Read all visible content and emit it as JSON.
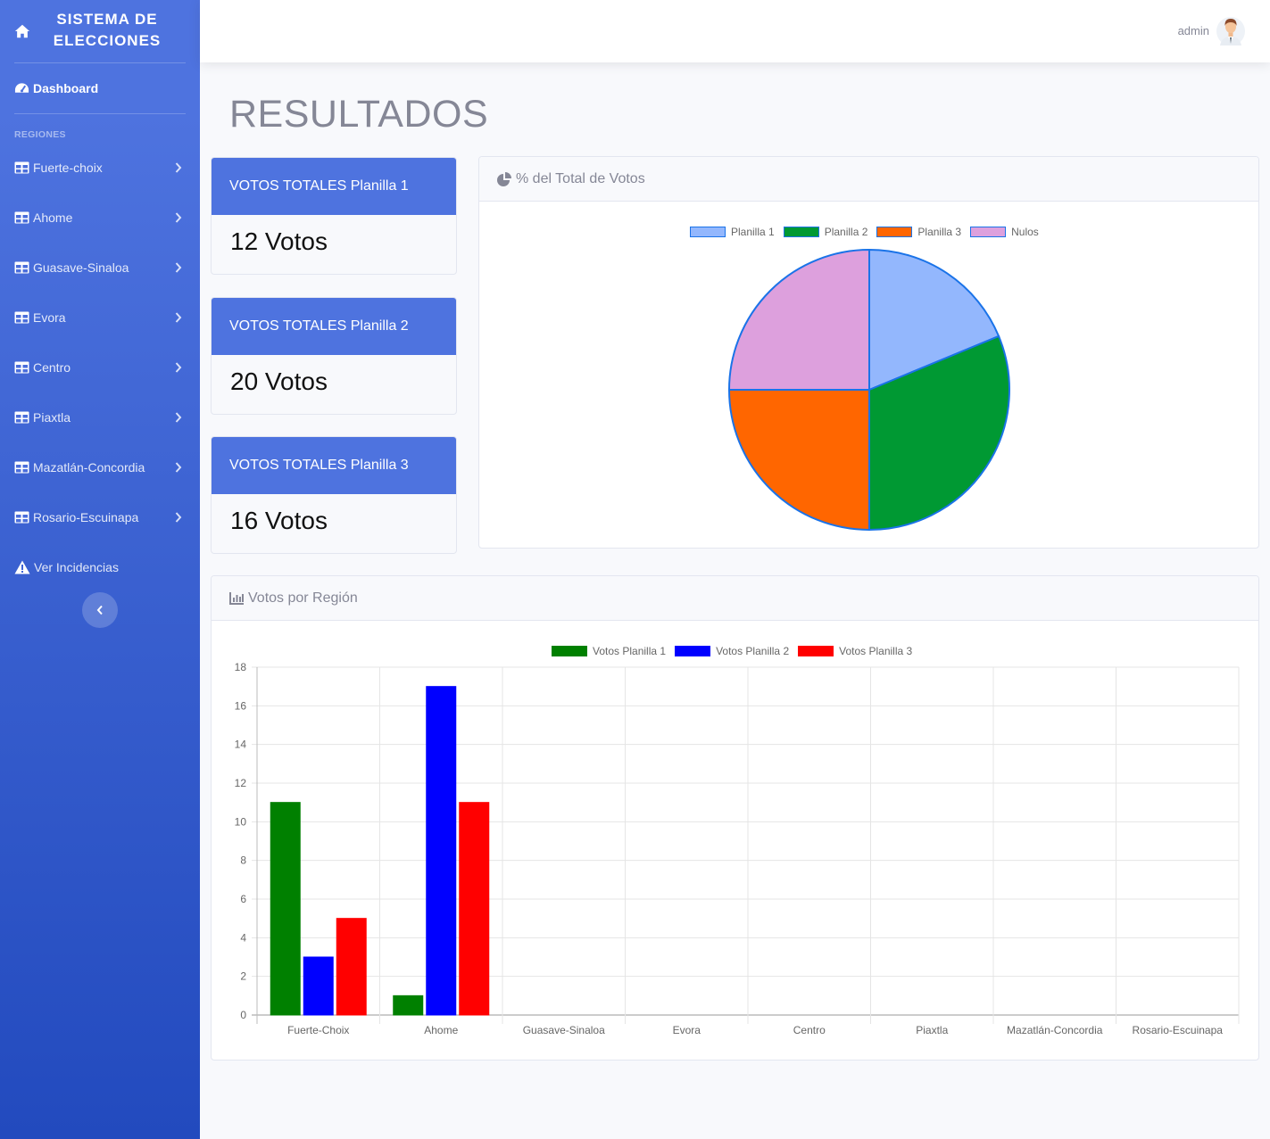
{
  "sidebar": {
    "brand": "SISTEMA DE ELECCIONES",
    "dashboard_label": "Dashboard",
    "section_heading": "REGIONES",
    "regions": [
      "Fuerte-choix",
      "Ahome",
      "Guasave-Sinaloa",
      "Evora",
      "Centro",
      "Piaxtla",
      "Mazatlán-Concordia",
      "Rosario-Escuinapa"
    ],
    "incidencias_label": "Ver Incidencias",
    "icons": {
      "brand": "home-icon",
      "dashboard": "tachometer-icon",
      "region": "table-icon",
      "incidencias": "warning-icon",
      "toggle": "chevron-left-icon"
    }
  },
  "topbar": {
    "user": "admin"
  },
  "main": {
    "title": "RESULTADOS",
    "cards": [
      {
        "label": "VOTOS TOTALES Planilla 1",
        "value": "12 Votos"
      },
      {
        "label": "VOTOS TOTALES Planilla 2",
        "value": "20 Votos"
      },
      {
        "label": "VOTOS TOTALES Planilla 3",
        "value": "16 Votos"
      }
    ],
    "pie_panel_title": "% del Total de Votos",
    "bar_panel_title": "Votos por Región"
  },
  "chart_data": [
    {
      "type": "pie",
      "labels": [
        "Planilla 1",
        "Planilla 2",
        "Planilla 3",
        "Nulos"
      ],
      "values": [
        12,
        20,
        16,
        16
      ],
      "colors": [
        "#93b7fd",
        "#009933",
        "#ff6600",
        "#dda0dd"
      ],
      "border_color": "#1a73e8",
      "legend": "top"
    },
    {
      "type": "bar",
      "categories": [
        "Fuerte-Choix",
        "Ahome",
        "Guasave-Sinaloa",
        "Evora",
        "Centro",
        "Piaxtla",
        "Mazatlán-Concordia",
        "Rosario-Escuinapa"
      ],
      "series": [
        {
          "name": "Votos Planilla 1",
          "color": "#008000",
          "values": [
            11,
            1,
            0,
            0,
            0,
            0,
            0,
            0
          ]
        },
        {
          "name": "Votos Planilla 2",
          "color": "#0000ff",
          "values": [
            3,
            17,
            0,
            0,
            0,
            0,
            0,
            0
          ]
        },
        {
          "name": "Votos Planilla 3",
          "color": "#ff0000",
          "values": [
            5,
            11,
            0,
            0,
            0,
            0,
            0,
            0
          ]
        }
      ],
      "ylim": [
        0,
        18
      ],
      "yticks": [
        0,
        2,
        4,
        6,
        8,
        10,
        12,
        14,
        16,
        18
      ],
      "grid": true,
      "legend": "top"
    }
  ]
}
